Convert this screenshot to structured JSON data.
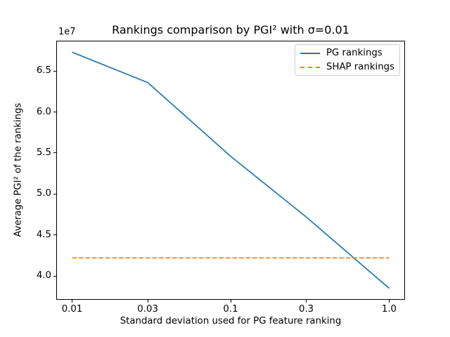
{
  "figure": {
    "title": "Rankings comparison by PGI² with σ=0.01",
    "offset_label": "1e7",
    "xlabel": "Standard deviation used for PG feature ranking",
    "ylabel": "Average PGI² of the rankings"
  },
  "legend": {
    "items": [
      {
        "label": "PG rankings",
        "color": "#1f77b4",
        "dashed": false
      },
      {
        "label": "SHAP rankings",
        "color": "#ff7f0e",
        "dashed": true
      }
    ]
  },
  "colors": {
    "pg_line": "#1f77b4",
    "shap_line": "#ff7f0e",
    "spine": "#000000",
    "legend_border": "#cccccc",
    "background": "#ffffff"
  },
  "chart_data": {
    "type": "line",
    "title": "Rankings comparison by PGI² with σ=0.01",
    "xlabel": "Standard deviation used for PG feature ranking",
    "ylabel": "Average PGI² of the rankings",
    "y_unit_multiplier": "1e7",
    "x_scale": "log",
    "x": [
      0.01,
      0.03,
      0.1,
      0.3,
      1.0
    ],
    "series": [
      {
        "name": "PG rankings",
        "color": "#1f77b4",
        "style": "solid",
        "values": [
          6.73,
          6.36,
          5.46,
          4.72,
          3.85
        ]
      },
      {
        "name": "SHAP rankings",
        "color": "#ff7f0e",
        "style": "dashed",
        "values": [
          4.22,
          4.22,
          4.22,
          4.22,
          4.22
        ]
      }
    ],
    "xticks": [
      0.01,
      0.03,
      0.1,
      0.3,
      1.0
    ],
    "xtick_labels": [
      "0.01",
      "0.03",
      "0.1",
      "0.3",
      "1.0"
    ],
    "yticks": [
      4.0,
      4.5,
      5.0,
      5.5,
      6.0,
      6.5
    ],
    "ytick_labels": [
      "4.0",
      "4.5",
      "5.0",
      "5.5",
      "6.0",
      "6.5"
    ],
    "xlim_log10": [
      -2.1,
      0.1
    ],
    "ylim": [
      3.71,
      6.87
    ],
    "grid": false,
    "legend_position": "upper right"
  }
}
